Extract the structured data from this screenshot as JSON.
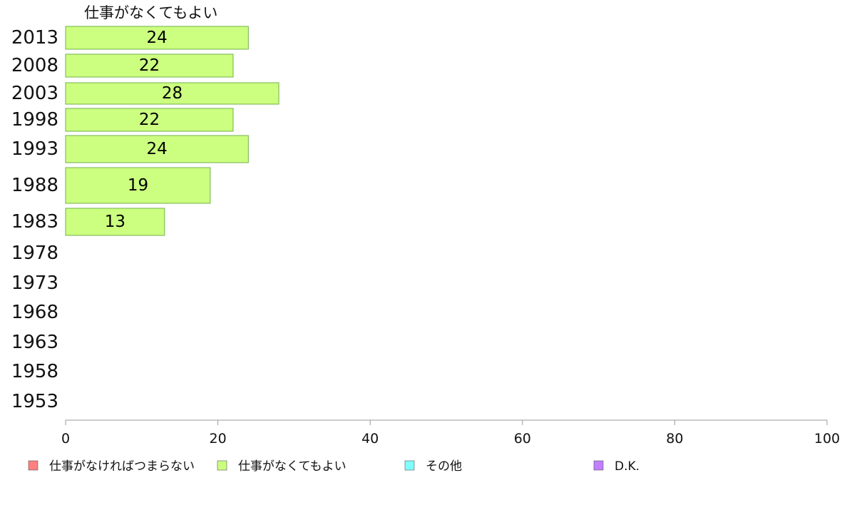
{
  "chart_data": {
    "type": "bar",
    "orientation": "horizontal",
    "series_title": "仕事がなくてもよい",
    "categories": [
      "2013",
      "2008",
      "2003",
      "1998",
      "1993",
      "1988",
      "1983",
      "1978",
      "1973",
      "1968",
      "1963",
      "1958",
      "1953"
    ],
    "series": [
      {
        "name": "仕事がなくてもよい",
        "values": [
          24,
          22,
          28,
          22,
          24,
          19,
          13,
          null,
          null,
          null,
          null,
          null,
          null
        ]
      }
    ],
    "bar_labels": [
      "24",
      "22",
      "28",
      "22",
      "24",
      "19",
      "13"
    ],
    "xlim": [
      0,
      100
    ],
    "x_ticks": [
      "0",
      "20",
      "40",
      "60",
      "80",
      "100"
    ],
    "grid": false,
    "legend": {
      "placement": "bottom",
      "entries": [
        {
          "label": "仕事がなければつまらない",
          "color": "#ff8080"
        },
        {
          "label": "仕事がなくてもよい",
          "color": "#ccff80"
        },
        {
          "label": "その他",
          "color": "#80ffff"
        },
        {
          "label": "D.K.",
          "color": "#c080ff"
        }
      ]
    },
    "colors": {
      "bar_fill": "#ccff80",
      "bar_stroke": "#70b048",
      "axis": "#999999"
    }
  }
}
